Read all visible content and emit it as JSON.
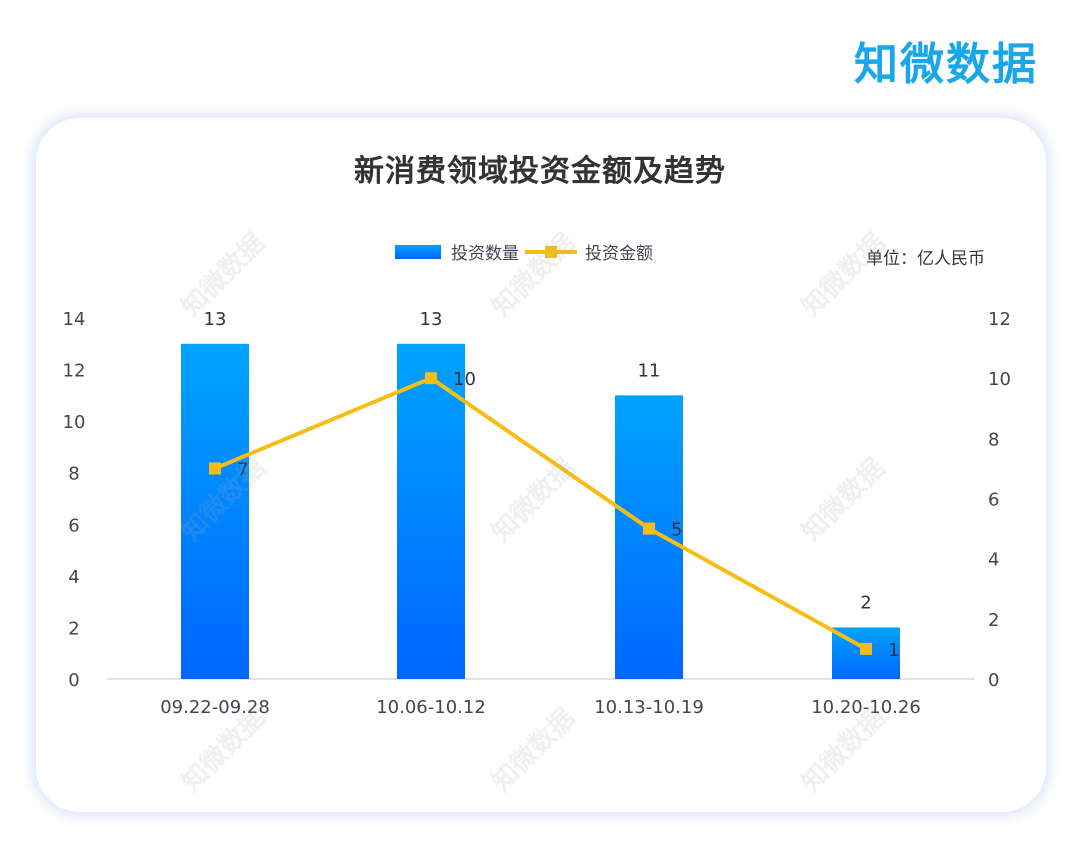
{
  "brand": {
    "logo_text": "知微数据",
    "color": "#1aa6ea"
  },
  "chart_title": "新消费领域投资金额及趋势",
  "legend": {
    "bar_label": "投资数量",
    "line_label": "投资金额"
  },
  "unit_label": "单位：亿人民币",
  "watermark_text": "知微数据",
  "colors": {
    "bar_top": "#00a3ff",
    "bar_bottom": "#0066ff",
    "line": "#f7bd14",
    "axis_text": "#444455",
    "title": "#333333"
  },
  "chart_data": {
    "type": "bar+line",
    "title": "新消费领域投资金额及趋势",
    "categories": [
      "09.22-09.28",
      "10.06-10.12",
      "10.13-10.19",
      "10.20-10.26"
    ],
    "series": [
      {
        "name": "投资数量",
        "type": "bar",
        "axis": "left",
        "values": [
          13,
          13,
          11,
          2
        ]
      },
      {
        "name": "投资金额",
        "type": "line",
        "axis": "right",
        "values": [
          7,
          10,
          5,
          1
        ]
      }
    ],
    "left_axis": {
      "ticks": [
        0,
        2,
        4,
        6,
        8,
        10,
        12,
        14
      ],
      "ylim": [
        0,
        14
      ]
    },
    "right_axis": {
      "ticks": [
        0,
        2,
        4,
        6,
        8,
        10,
        12
      ],
      "ylim": [
        0,
        12
      ]
    },
    "unit": "单位：亿人民币",
    "legend_position": "top",
    "grid": false,
    "xlabel": "",
    "ylabel": ""
  }
}
